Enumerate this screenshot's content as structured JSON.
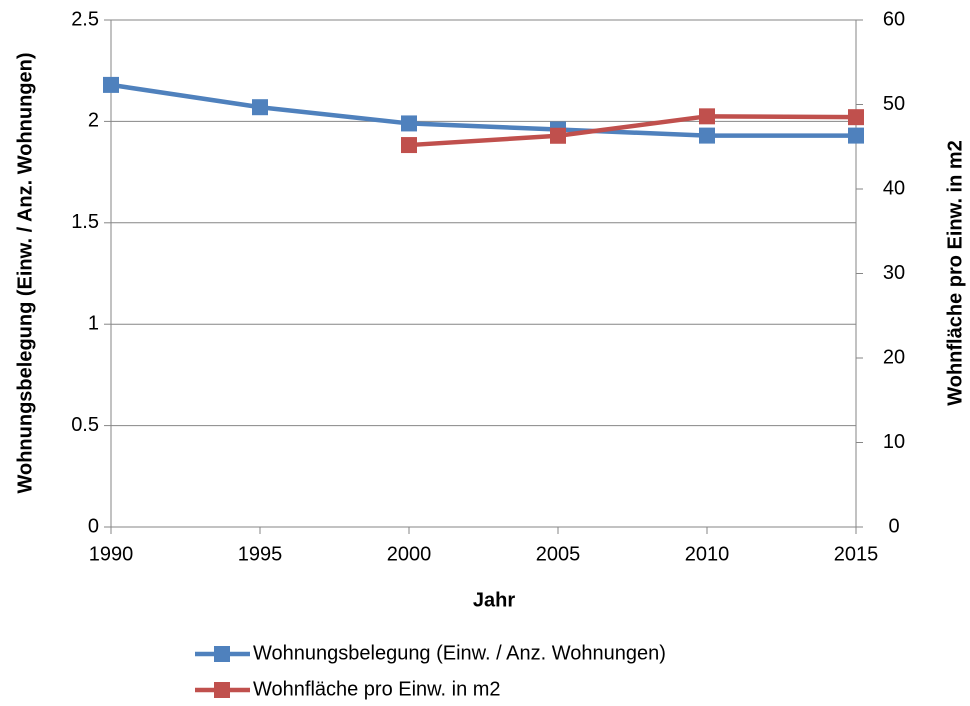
{
  "chart_data": {
    "type": "line",
    "x_label": "Jahr",
    "y_label": "Wohnungsbelegung (Einw. / Anz. Wohnungen)",
    "y2_label": "Wohnfläche pro Einw. in m2",
    "x": [
      1990,
      1995,
      2000,
      2005,
      2010,
      2015
    ],
    "xlim": [
      1990,
      2015
    ],
    "xticks": [
      1990,
      1995,
      2000,
      2005,
      2010,
      2015
    ],
    "ylim": [
      0,
      2.5
    ],
    "yticks": [
      0,
      0.5,
      1,
      1.5,
      2,
      2.5
    ],
    "y2lim": [
      0,
      60
    ],
    "y2ticks": [
      0,
      10,
      20,
      30,
      40,
      50,
      60
    ],
    "grid": true,
    "legend": "bottom",
    "series": [
      {
        "name": "Wohnungsbelegung (Einw. / Anz. Wohnungen)",
        "color": "#4f81bd",
        "values": [
          2.18,
          2.07,
          1.99,
          1.96,
          1.93,
          1.93
        ]
      },
      {
        "name": "Wohnfläche pro Einw. in m2",
        "color": "#c0504d",
        "axis": "y2",
        "values": [
          null,
          null,
          45.2,
          46.3,
          48.6,
          48.5
        ]
      }
    ]
  }
}
